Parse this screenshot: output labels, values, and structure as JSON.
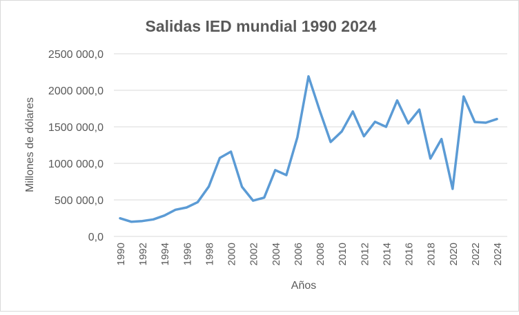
{
  "chart_data": {
    "type": "line",
    "title": "Salidas IED mundial 1990 2024",
    "xlabel": "Años",
    "ylabel": "Millones de dólares",
    "ylim": [
      0,
      2500000
    ],
    "grid": true,
    "legend": "none",
    "series_color": "#5B9BD5",
    "y_ticks": [
      0,
      500000,
      1000000,
      1500000,
      2000000,
      2500000
    ],
    "y_tick_labels": [
      "0,0",
      "500 000,0",
      "1000 000,0",
      "1500 000,0",
      "2000 000,0",
      "2500 000,0"
    ],
    "x_tick_labels": [
      "1990",
      "1992",
      "1994",
      "1996",
      "1998",
      "2000",
      "2002",
      "2004",
      "2006",
      "2008",
      "2010",
      "2012",
      "2014",
      "2016",
      "2018",
      "2020",
      "2022",
      "2024"
    ],
    "x": [
      1990,
      1991,
      1992,
      1993,
      1994,
      1995,
      1996,
      1997,
      1998,
      1999,
      2000,
      2001,
      2002,
      2003,
      2004,
      2005,
      2006,
      2007,
      2008,
      2009,
      2010,
      2011,
      2012,
      2013,
      2014,
      2015,
      2016,
      2017,
      2018,
      2019,
      2020,
      2021,
      2022,
      2023,
      2024
    ],
    "series": [
      {
        "name": "Salidas IED",
        "values": [
          248000,
          201000,
          210000,
          233000,
          286000,
          365000,
          396000,
          469000,
          682000,
          1075000,
          1160000,
          679000,
          490000,
          531000,
          908000,
          840000,
          1358000,
          2191000,
          1726000,
          1292000,
          1437000,
          1710000,
          1371000,
          1569000,
          1500000,
          1861000,
          1547000,
          1736000,
          1066000,
          1333000,
          651000,
          1915000,
          1566000,
          1557000,
          1607000
        ]
      }
    ]
  }
}
